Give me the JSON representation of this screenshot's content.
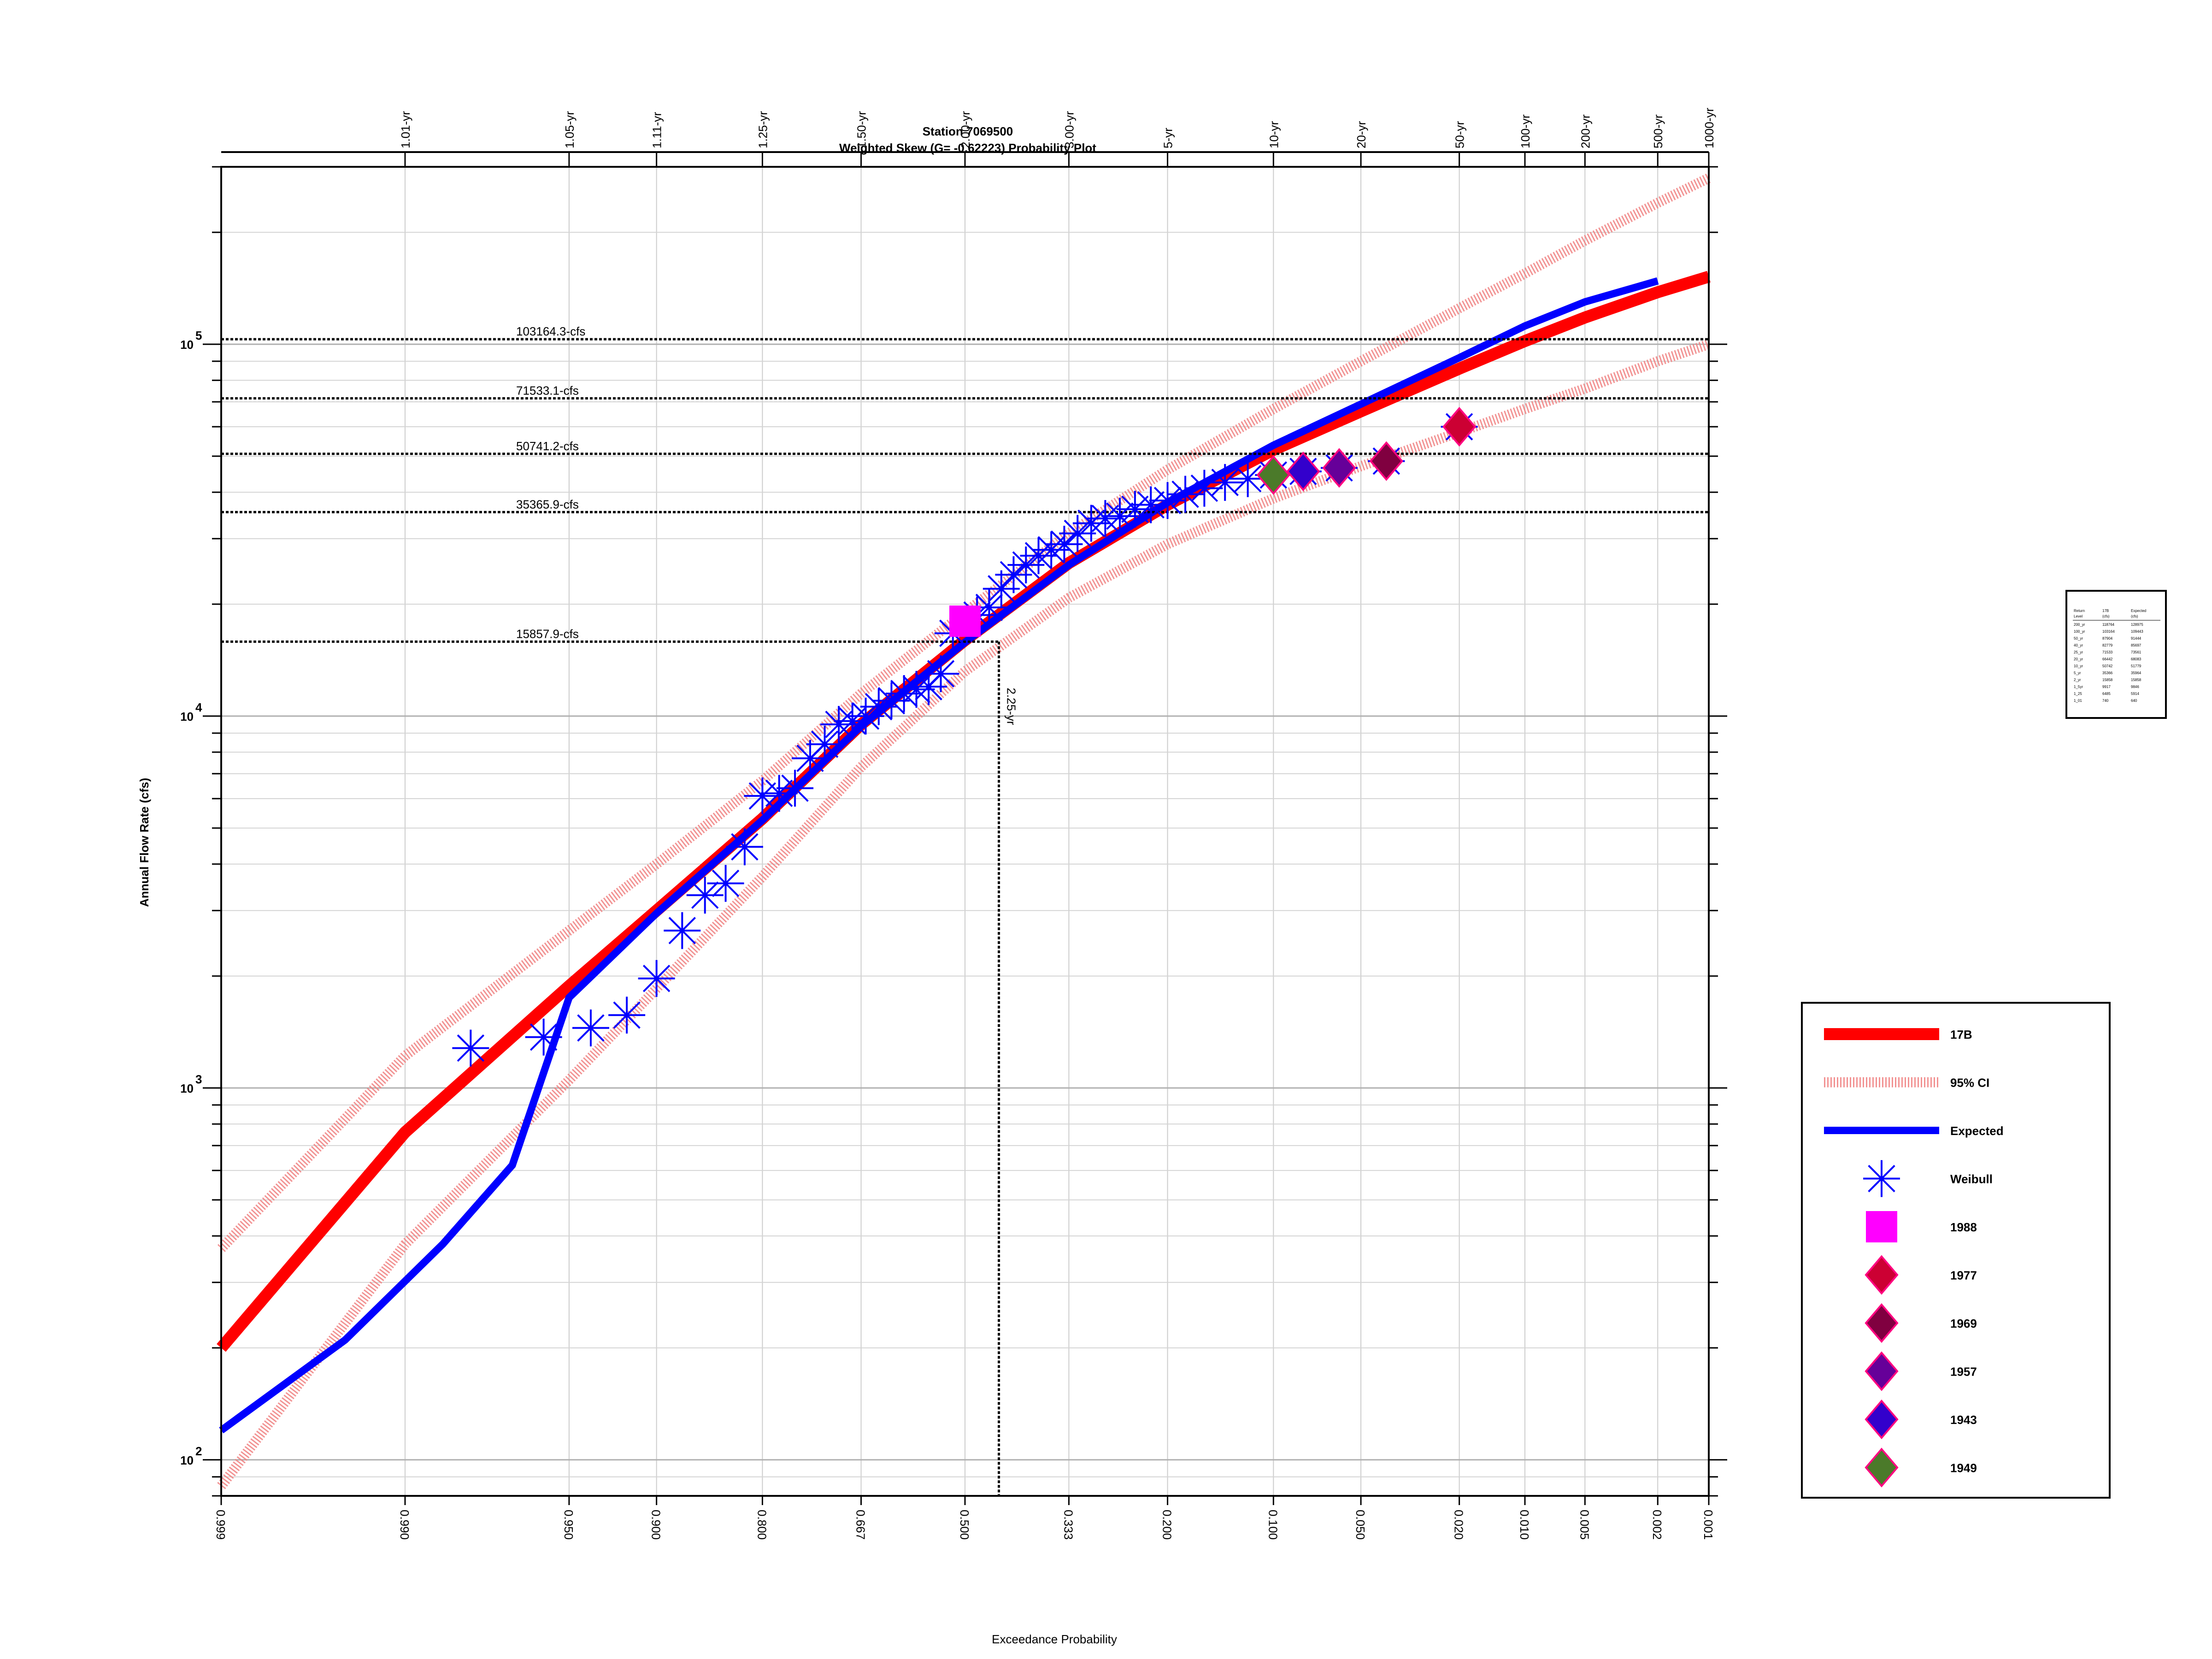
{
  "chart_data": {
    "type": "scatter",
    "title": "Station 7069500",
    "subtitle": "Weighted Skew (G= -0.62223) Probability Plot",
    "xlabel": "Exceedance Probability",
    "ylabel": "Annual Flow Rate (cfs)",
    "x_scale": "normal-probability (reversed)",
    "y_scale": "log",
    "xlim": [
      0.999,
      0.001
    ],
    "ylim": [
      80,
      300000
    ],
    "grid": true,
    "legend_position": "right",
    "x_ticks": [
      "0.999",
      "0.990",
      "0.950",
      "0.900",
      "0.800",
      "0.667",
      "0.500",
      "0.333",
      "0.200",
      "0.100",
      "0.050",
      "0.020",
      "0.010",
      "0.005",
      "0.002",
      "0.001"
    ],
    "x_tick_values": [
      0.999,
      0.99,
      0.95,
      0.9,
      0.8,
      0.667,
      0.5,
      0.333,
      0.2,
      0.1,
      0.05,
      0.02,
      0.01,
      0.005,
      0.002,
      0.001
    ],
    "top_ticks": [
      "1.01-yr",
      "1.05-yr",
      "1.11-yr",
      "1.25-yr",
      "1.50-yr",
      "2.00-yr",
      "3.00-yr",
      "5-yr",
      "10-yr",
      "20-yr",
      "50-yr",
      "100-yr",
      "200-yr",
      "500-yr",
      "1000-yr"
    ],
    "top_tick_values": [
      0.99,
      0.95,
      0.9,
      0.8,
      0.667,
      0.5,
      0.333,
      0.2,
      0.1,
      0.05,
      0.02,
      0.01,
      0.005,
      0.002,
      0.001
    ],
    "y_tick_labels": [
      {
        "base": "10",
        "exp": "2",
        "value": 100
      },
      {
        "base": "10",
        "exp": "3",
        "value": 1000
      },
      {
        "base": "10",
        "exp": "4",
        "value": 10000
      },
      {
        "base": "10",
        "exp": "5",
        "value": 100000
      }
    ],
    "reference_lines": [
      {
        "label": "103164.3-cfs",
        "value": 103164.3
      },
      {
        "label": "71533.1-cfs",
        "value": 71533.1
      },
      {
        "label": "50741.2-cfs",
        "value": 50741.2
      },
      {
        "label": "35365.9-cfs",
        "value": 35365.9
      },
      {
        "label": "15857.9-cfs",
        "value": 15857.9
      }
    ],
    "vertical_reference": {
      "label": "2.25-yr",
      "x": 0.444,
      "y": 15857.9
    },
    "series": [
      {
        "name": "17B",
        "kind": "line",
        "color": "#ff0000",
        "points": [
          [
            0.999,
            200
          ],
          [
            0.99,
            760
          ],
          [
            0.95,
            1880
          ],
          [
            0.9,
            3000
          ],
          [
            0.8,
            5300
          ],
          [
            0.667,
            9500
          ],
          [
            0.5,
            16000
          ],
          [
            0.333,
            25800
          ],
          [
            0.2,
            37000
          ],
          [
            0.1,
            52000
          ],
          [
            0.05,
            66000
          ],
          [
            0.02,
            86000
          ],
          [
            0.01,
            102000
          ],
          [
            0.005,
            118000
          ],
          [
            0.002,
            138000
          ],
          [
            0.001,
            152000
          ]
        ]
      },
      {
        "name": "95% CI",
        "kind": "band",
        "color": "#f08080",
        "upper": [
          [
            0.999,
            370
          ],
          [
            0.99,
            1220
          ],
          [
            0.95,
            2650
          ],
          [
            0.9,
            4000
          ],
          [
            0.8,
            6700
          ],
          [
            0.667,
            11500
          ],
          [
            0.5,
            19000
          ],
          [
            0.333,
            31000
          ],
          [
            0.2,
            46000
          ],
          [
            0.1,
            67000
          ],
          [
            0.05,
            90000
          ],
          [
            0.02,
            125000
          ],
          [
            0.01,
            155000
          ],
          [
            0.005,
            190000
          ],
          [
            0.002,
            240000
          ],
          [
            0.001,
            280000
          ]
        ],
        "lower": [
          [
            0.999,
            85
          ],
          [
            0.99,
            380
          ],
          [
            0.95,
            1050
          ],
          [
            0.9,
            1850
          ],
          [
            0.8,
            3700
          ],
          [
            0.667,
            7300
          ],
          [
            0.5,
            13200
          ],
          [
            0.333,
            20800
          ],
          [
            0.2,
            29000
          ],
          [
            0.1,
            38500
          ],
          [
            0.05,
            47000
          ],
          [
            0.02,
            58000
          ],
          [
            0.01,
            67000
          ],
          [
            0.005,
            76000
          ],
          [
            0.002,
            90000
          ],
          [
            0.001,
            100000
          ]
        ]
      },
      {
        "name": "Expected",
        "kind": "line",
        "color": "#0000ff",
        "points": [
          [
            0.999,
            120
          ],
          [
            0.995,
            210
          ],
          [
            0.985,
            380
          ],
          [
            0.97,
            620
          ],
          [
            0.95,
            1750
          ],
          [
            0.9,
            2950
          ],
          [
            0.8,
            5250
          ],
          [
            0.667,
            9400
          ],
          [
            0.5,
            15800
          ],
          [
            0.333,
            25500
          ],
          [
            0.2,
            37500
          ],
          [
            0.1,
            53500
          ],
          [
            0.05,
            69000
          ],
          [
            0.02,
            92000
          ],
          [
            0.01,
            112000
          ],
          [
            0.005,
            130000
          ],
          [
            0.002,
            148000
          ]
        ]
      },
      {
        "name": "Weibull",
        "kind": "points",
        "color": "#0000ff",
        "points": [
          [
            0.98,
            1280
          ],
          [
            0.96,
            1370
          ],
          [
            0.94,
            1450
          ],
          [
            0.92,
            1570
          ],
          [
            0.9,
            1970
          ],
          [
            0.88,
            2650
          ],
          [
            0.86,
            3300
          ],
          [
            0.84,
            3550
          ],
          [
            0.82,
            4450
          ],
          [
            0.8,
            6100
          ],
          [
            0.78,
            6200
          ],
          [
            0.76,
            6400
          ],
          [
            0.74,
            7700
          ],
          [
            0.72,
            8400
          ],
          [
            0.7,
            9500
          ],
          [
            0.68,
            9700
          ],
          [
            0.66,
            10000
          ],
          [
            0.64,
            10600
          ],
          [
            0.62,
            11000
          ],
          [
            0.6,
            11500
          ],
          [
            0.58,
            11800
          ],
          [
            0.56,
            12000
          ],
          [
            0.54,
            13000
          ],
          [
            0.52,
            16700
          ],
          [
            0.48,
            18700
          ],
          [
            0.46,
            19600
          ],
          [
            0.44,
            22000
          ],
          [
            0.42,
            24000
          ],
          [
            0.4,
            25500
          ],
          [
            0.38,
            27000
          ],
          [
            0.36,
            28000
          ],
          [
            0.34,
            29000
          ],
          [
            0.32,
            31000
          ],
          [
            0.3,
            33000
          ],
          [
            0.28,
            34000
          ],
          [
            0.26,
            34500
          ],
          [
            0.24,
            36000
          ],
          [
            0.22,
            37000
          ],
          [
            0.2,
            38000
          ],
          [
            0.18,
            39500
          ],
          [
            0.16,
            41000
          ],
          [
            0.14,
            42500
          ],
          [
            0.12,
            43500
          ],
          [
            0.1,
            44500
          ],
          [
            0.08,
            45500
          ],
          [
            0.06,
            46500
          ],
          [
            0.04,
            48500
          ],
          [
            0.02,
            60000
          ]
        ]
      },
      {
        "name": "1988",
        "kind": "marker",
        "shape": "square",
        "color": "#ff00ff",
        "points": [
          [
            0.5,
            18000
          ]
        ]
      },
      {
        "name": "1977",
        "kind": "marker",
        "shape": "diamond",
        "color": "#cc0033",
        "points": [
          [
            0.02,
            60000
          ]
        ]
      },
      {
        "name": "1969",
        "kind": "marker",
        "shape": "diamond",
        "color": "#800040",
        "points": [
          [
            0.04,
            48500
          ]
        ]
      },
      {
        "name": "1957",
        "kind": "marker",
        "shape": "diamond",
        "color": "#660099",
        "points": [
          [
            0.06,
            46500
          ]
        ]
      },
      {
        "name": "1943",
        "kind": "marker",
        "shape": "diamond",
        "color": "#3300cc",
        "points": [
          [
            0.08,
            45500
          ]
        ]
      },
      {
        "name": "1949",
        "kind": "marker",
        "shape": "diamond",
        "color": "#4b7a2a",
        "points": [
          [
            0.1,
            44500
          ]
        ]
      }
    ],
    "side_table": {
      "headers": [
        [
          "Return",
          "17B",
          "Expected"
        ],
        [
          "Level",
          "(cfs)",
          "(cfs)"
        ]
      ],
      "rows": [
        [
          "200_yr",
          "118764",
          "128975"
        ],
        [
          "100_yr",
          "103164",
          "109443"
        ],
        [
          "50_yr",
          "87904",
          "91444"
        ],
        [
          "40_yr",
          "82779",
          "85697"
        ],
        [
          "25_yr",
          "71533",
          "73561"
        ],
        [
          "20_yr",
          "66442",
          "68083"
        ],
        [
          "10_yr",
          "50742",
          "51779"
        ],
        [
          "5_yr",
          "35366",
          "35964"
        ],
        [
          "2_yr",
          "15858",
          "15858"
        ],
        [
          "1_5yr",
          "9917",
          "9846"
        ],
        [
          "1_25",
          "6485",
          "5914"
        ],
        [
          "1_01",
          "740",
          "640"
        ]
      ]
    }
  }
}
